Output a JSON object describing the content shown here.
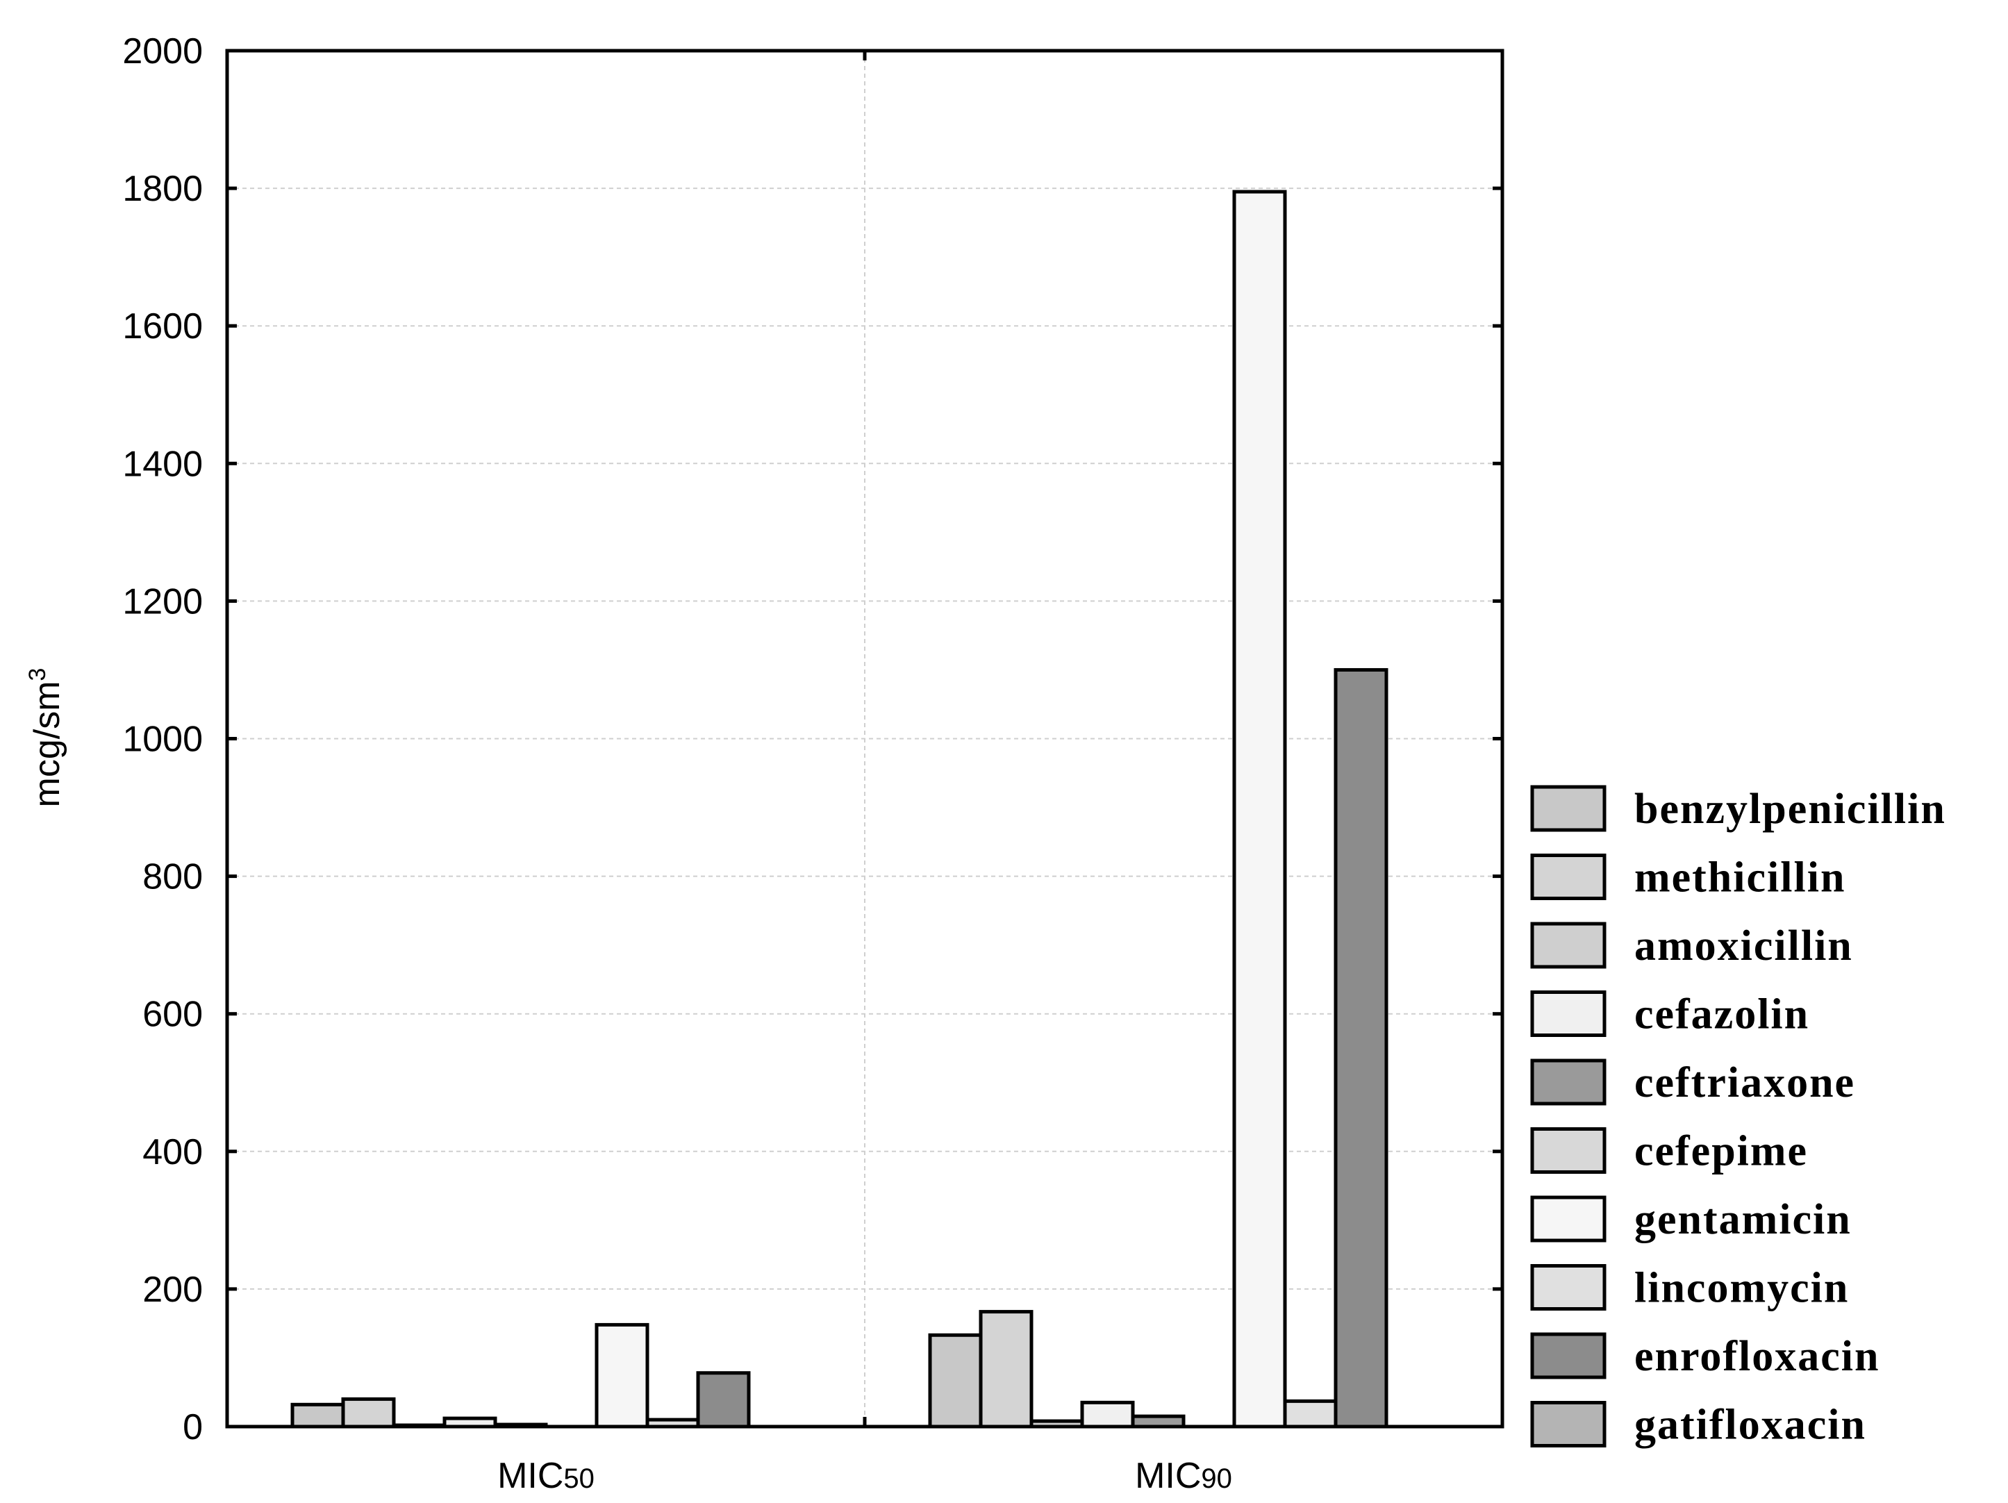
{
  "chart_data": {
    "type": "bar",
    "title": "",
    "xlabel": "",
    "ylabel": "mcg/sm",
    "ylabel_superscript": "3",
    "ylim": [
      0,
      2000
    ],
    "yticks": [
      "0",
      "200",
      "400",
      "600",
      "800",
      "1000",
      "1200",
      "1400",
      "1600",
      "1800",
      "2000"
    ],
    "grid": true,
    "legend_position": "right",
    "categories": [
      {
        "base": "MIC",
        "sub": "50"
      },
      {
        "base": "MIC",
        "sub": "90"
      }
    ],
    "series": [
      {
        "name": "benzylpenicillin",
        "values": [
          32,
          133
        ],
        "color": "#c8c8c8"
      },
      {
        "name": "methicillin",
        "values": [
          40,
          167
        ],
        "color": "#d4d4d4"
      },
      {
        "name": "amoxicillin",
        "values": [
          2,
          8
        ],
        "color": "#cfcfcf"
      },
      {
        "name": "cefazolin",
        "values": [
          12,
          35
        ],
        "color": "#f0f0f0"
      },
      {
        "name": "ceftriaxone",
        "values": [
          3,
          15
        ],
        "color": "#9a9a9a"
      },
      {
        "name": "cefepime",
        "values": [
          0,
          0
        ],
        "color": "#d8d8d8"
      },
      {
        "name": "gentamicin",
        "values": [
          148,
          1795
        ],
        "color": "#f6f6f6"
      },
      {
        "name": "lincomycin",
        "values": [
          10,
          37
        ],
        "color": "#e0e0e0"
      },
      {
        "name": "enrofloxacin",
        "values": [
          78,
          1100
        ],
        "color": "#8c8c8c"
      },
      {
        "name": "gatifloxacin",
        "values": [
          0,
          0
        ],
        "color": "#b4b4b4"
      }
    ]
  }
}
